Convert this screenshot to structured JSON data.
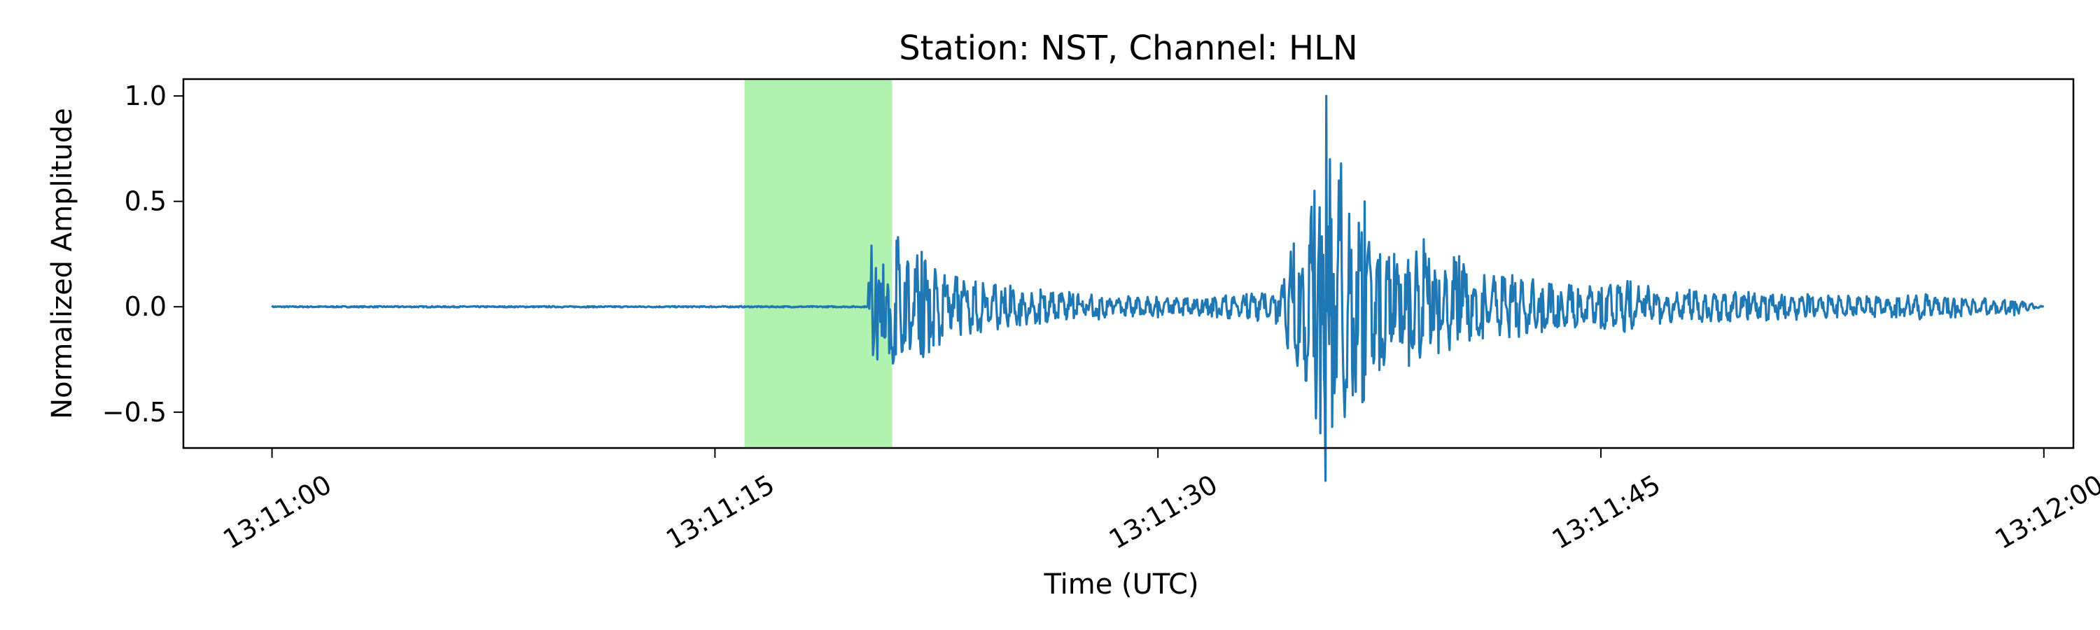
{
  "chart_data": {
    "type": "line",
    "title": "Station: NST, Channel: HLN",
    "xlabel": "Time (UTC)",
    "ylabel": "Normalized Amplitude",
    "x_axis": {
      "start": "13:11:00",
      "end": "13:12:00",
      "xlim_seconds": [
        -3,
        61
      ],
      "ticks": [
        {
          "label": "13:11:00",
          "t": 0
        },
        {
          "label": "13:11:15",
          "t": 15
        },
        {
          "label": "13:11:30",
          "t": 30
        },
        {
          "label": "13:11:45",
          "t": 45
        },
        {
          "label": "13:12:00",
          "t": 60
        }
      ]
    },
    "y_axis": {
      "ylim": [
        -0.67,
        1.08
      ],
      "ticks": [
        {
          "label": "1.0",
          "v": 1.0
        },
        {
          "label": "0.5",
          "v": 0.5
        },
        {
          "label": "0.0",
          "v": 0.0
        },
        {
          "label": "−0.5",
          "v": -0.5
        }
      ]
    },
    "highlight": {
      "color": "#b2f2b0",
      "x_start": "13:11:16",
      "x_end": "13:11:21"
    },
    "series": [
      {
        "color": "#1f77b4",
        "x": [
          0,
          20.1,
          20.3,
          20.5,
          20.7,
          20.9,
          21.2,
          21.6,
          22.0,
          22.6,
          23.2,
          24.0,
          25.0,
          26.0,
          27.0,
          28.0,
          29.0,
          30.0,
          31.0,
          32.0,
          33.0,
          34.0,
          34.6,
          35.0,
          35.3,
          35.5,
          35.7,
          35.9,
          36.2,
          36.6,
          37.0,
          37.5,
          38.0,
          38.5,
          39.0,
          39.5,
          40.2,
          41.0,
          42.0,
          43.0,
          44.0,
          45.0,
          46.0,
          47.0,
          48.0,
          49.0,
          50.0,
          51.0,
          52.0,
          53.0,
          54.0,
          55.0,
          56.0,
          57.0,
          58.0,
          59.0,
          60.0
        ],
        "y": [
          0.0,
          0.0,
          0.29,
          -0.25,
          0.2,
          -0.22,
          0.33,
          -0.2,
          0.26,
          -0.18,
          0.14,
          -0.12,
          0.1,
          -0.08,
          0.07,
          -0.06,
          0.05,
          -0.05,
          0.04,
          -0.05,
          0.06,
          -0.08,
          0.3,
          -0.35,
          0.55,
          -0.6,
          1.0,
          -0.57,
          0.68,
          -0.42,
          0.5,
          -0.3,
          0.25,
          -0.28,
          0.32,
          -0.22,
          0.24,
          -0.15,
          0.15,
          -0.12,
          0.1,
          -0.1,
          0.12,
          -0.08,
          0.08,
          -0.07,
          0.07,
          -0.06,
          0.06,
          -0.05,
          0.05,
          -0.05,
          0.06,
          -0.05,
          0.04,
          -0.04,
          0.0
        ]
      }
    ]
  }
}
